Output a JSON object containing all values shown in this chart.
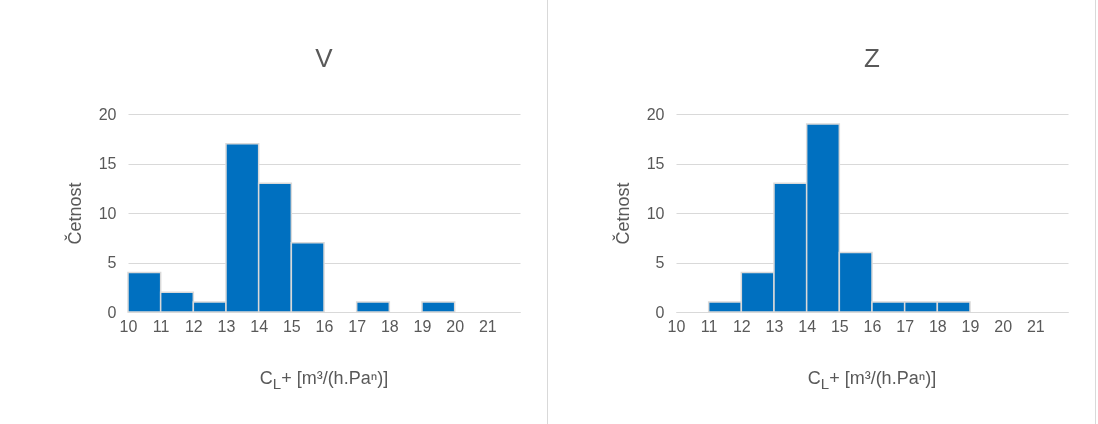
{
  "chart_data": [
    {
      "type": "histogram",
      "title": "V",
      "xlabel": "C$_{L}$+ [m³/(h.Paⁿ)]",
      "ylabel": "Četnost",
      "bins": [
        10,
        11,
        12,
        13,
        14,
        15,
        16,
        17,
        18,
        19,
        20,
        21,
        22
      ],
      "values": [
        4,
        2,
        1,
        17,
        13,
        7,
        0,
        1,
        0,
        1,
        0,
        0
      ],
      "color": "#0070c0",
      "xlim": [
        10,
        22
      ],
      "xticks": [
        10,
        11,
        12,
        13,
        14,
        15,
        16,
        17,
        18,
        19,
        20,
        21
      ],
      "ylim": [
        0,
        20
      ],
      "yticks": [
        0,
        5,
        10,
        15,
        20
      ],
      "grid": "y"
    },
    {
      "type": "histogram",
      "title": "Z",
      "xlabel": "C$_{L}$+ [m³/(h.Paⁿ)]",
      "ylabel": "Četnost",
      "bins": [
        10,
        11,
        12,
        13,
        14,
        15,
        16,
        17,
        18,
        19,
        20,
        21,
        22
      ],
      "values": [
        0,
        1,
        4,
        13,
        19,
        6,
        1,
        1,
        1,
        0,
        0,
        0
      ],
      "color": "#0070c0",
      "xlim": [
        10,
        22
      ],
      "xticks": [
        10,
        11,
        12,
        13,
        14,
        15,
        16,
        17,
        18,
        19,
        20,
        21
      ],
      "ylim": [
        0,
        20
      ],
      "yticks": [
        0,
        5,
        10,
        15,
        20
      ],
      "grid": "y"
    }
  ]
}
